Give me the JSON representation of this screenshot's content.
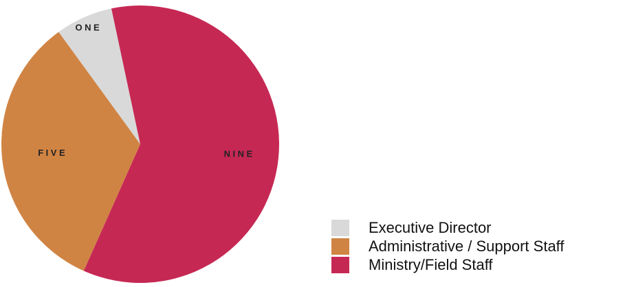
{
  "chart_data": {
    "type": "pie",
    "slices": [
      {
        "name": "Executive Director",
        "value": 1,
        "label": "ONE",
        "color": "#d9d9d9"
      },
      {
        "name": "Administrative / Support Staff",
        "value": 5,
        "label": "FIVE",
        "color": "#d08444"
      },
      {
        "name": "Ministry/Field Staff",
        "value": 9,
        "label": "NINE",
        "color": "#c62854"
      }
    ],
    "start_angle_deg": -12,
    "direction": "counterclockwise",
    "legend_position": "bottom-right"
  }
}
